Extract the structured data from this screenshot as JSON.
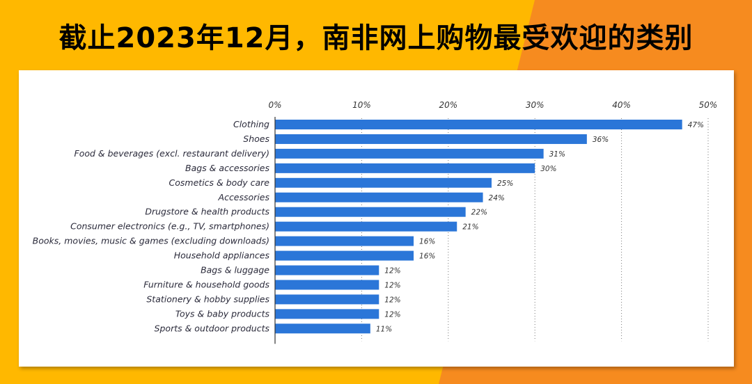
{
  "title": "截止2023年12月，南非网上购物最受欢迎的类别",
  "colors": {
    "background_left": "#FFB800",
    "background_right": "#F68B1F",
    "bar": "#2B76D8",
    "panel": "#FFFFFF"
  },
  "chart_data": {
    "type": "bar",
    "orientation": "horizontal",
    "categories": [
      "Clothing",
      "Shoes",
      "Food & beverages (excl. restaurant delivery)",
      "Bags & accessories",
      "Cosmetics & body care",
      "Accessories",
      "Drugstore & health products",
      "Consumer electronics (e.g., TV, smartphones)",
      "Books, movies, music & games (excluding downloads)",
      "Household appliances",
      "Bags & luggage",
      "Furniture & household goods",
      "Stationery & hobby supplies",
      "Toys & baby products",
      "Sports & outdoor products"
    ],
    "values": [
      47,
      36,
      31,
      30,
      25,
      24,
      22,
      21,
      16,
      16,
      12,
      12,
      12,
      12,
      11
    ],
    "value_labels": [
      "47%",
      "36%",
      "31%",
      "30%",
      "25%",
      "24%",
      "22%",
      "21%",
      "16%",
      "16%",
      "12%",
      "12%",
      "12%",
      "12%",
      "11%"
    ],
    "xlim": [
      0,
      50
    ],
    "ticks": [
      0,
      10,
      20,
      30,
      40,
      50
    ],
    "tick_labels": [
      "0%",
      "10%",
      "20%",
      "30%",
      "40%",
      "50%"
    ],
    "axis_position": "top",
    "grid": "vertical dotted",
    "unit": "%"
  }
}
